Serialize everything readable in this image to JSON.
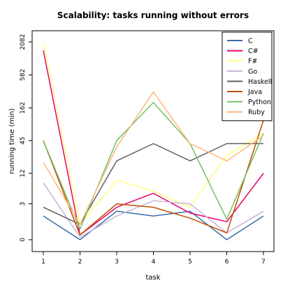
{
  "chart_data": {
    "type": "line",
    "title": "Scalability: tasks running without errors",
    "xlabel": "task",
    "ylabel": "running time (min)",
    "x": [
      1,
      2,
      3,
      4,
      5,
      6,
      7
    ],
    "x_tick_labels": [
      "1",
      "2",
      "3",
      "4",
      "5",
      "6",
      "7"
    ],
    "y_scale": "log(1+y)",
    "y_ticks": [
      0,
      3,
      12,
      45,
      162,
      582,
      2082
    ],
    "y_tick_labels": [
      "0",
      "3",
      "12",
      "45",
      "162",
      "582",
      "2082"
    ],
    "ylim": [
      0,
      2082
    ],
    "xlim": [
      1,
      7
    ],
    "grid": false,
    "legend_position": "top-right",
    "series": [
      {
        "name": "C",
        "color": "#3a6ea5",
        "values": [
          1.5,
          0,
          2.0,
          1.5,
          2.0,
          0,
          1.5
        ]
      },
      {
        "name": "C#",
        "color": "#e6006e",
        "values": [
          1500,
          0.2,
          2.5,
          5.0,
          1.8,
          1.0,
          12
        ]
      },
      {
        "name": "F#",
        "color": "#ffff80",
        "values": [
          2082,
          0.8,
          9,
          5.5,
          2.5,
          25,
          60
        ]
      },
      {
        "name": "Go",
        "color": "#c8b4dc",
        "values": [
          8,
          0.1,
          1.5,
          3.5,
          3.0,
          0.3,
          2.0
        ]
      },
      {
        "name": "Haskell",
        "color": "#606060",
        "values": [
          2.5,
          0.8,
          20,
          40,
          20,
          40,
          40
        ]
      },
      {
        "name": "Java",
        "color": "#c04d00",
        "values": [
          45,
          0.2,
          3.0,
          2.5,
          1.3,
          0.3,
          100
        ]
      },
      {
        "name": "Python",
        "color": "#77c066",
        "values": [
          45,
          0.5,
          45,
          200,
          40,
          1.2,
          60
        ]
      },
      {
        "name": "Ruby",
        "color": "#ffb87a",
        "values": [
          19,
          0.8,
          35,
          300,
          40,
          20,
          55
        ]
      }
    ]
  }
}
